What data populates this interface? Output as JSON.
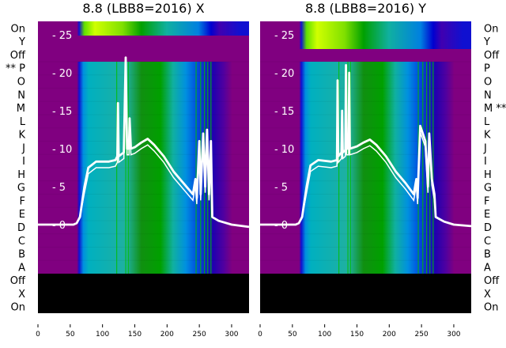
{
  "chart_data": [
    {
      "type": "heatmap",
      "title": "8.8 (LBB8=2016) X",
      "row_labels": [
        "On",
        "Y",
        "Off",
        "** P",
        "O",
        "N",
        "M",
        "L",
        "K",
        "J",
        "I",
        "H",
        "G",
        "F",
        "E",
        "D",
        "C",
        "B",
        "A",
        "Off",
        "X",
        "On"
      ],
      "label_side": "left",
      "xlim": [
        0,
        327
      ],
      "x_ticks": [
        0,
        50,
        100,
        150,
        200,
        250,
        300
      ],
      "overlay_ylim": [
        -6.5,
        26.5
      ],
      "overlay_y_ticks": [
        0,
        5,
        10,
        15,
        20,
        25
      ],
      "spectrum": [
        [
          0,
          0
        ],
        [
          55,
          0
        ],
        [
          60,
          0.2
        ],
        [
          65,
          1
        ],
        [
          72,
          5
        ],
        [
          78,
          7.5
        ],
        [
          90,
          8.3
        ],
        [
          110,
          8.3
        ],
        [
          120,
          8.5
        ],
        [
          123,
          9
        ],
        [
          124,
          16
        ],
        [
          125,
          9
        ],
        [
          133,
          9.5
        ],
        [
          136,
          22
        ],
        [
          138,
          10
        ],
        [
          141,
          10
        ],
        [
          142,
          14
        ],
        [
          144,
          10
        ],
        [
          150,
          10.2
        ],
        [
          160,
          10.8
        ],
        [
          170,
          11.3
        ],
        [
          180,
          10.5
        ],
        [
          195,
          9
        ],
        [
          210,
          7
        ],
        [
          225,
          5.5
        ],
        [
          240,
          4
        ],
        [
          244,
          6
        ],
        [
          246,
          3.5
        ],
        [
          250,
          11
        ],
        [
          252,
          4
        ],
        [
          256,
          12
        ],
        [
          259,
          5
        ],
        [
          262,
          12.5
        ],
        [
          265,
          4
        ],
        [
          268,
          11
        ],
        [
          270,
          1
        ],
        [
          280,
          0.5
        ],
        [
          300,
          0
        ],
        [
          327,
          -0.3
        ]
      ]
    },
    {
      "type": "heatmap",
      "title": "8.8 (LBB8=2016) Y",
      "row_labels": [
        "On",
        "Y",
        "Off",
        "P",
        "O",
        "N",
        "M **",
        "L",
        "K",
        "J",
        "I",
        "H",
        "G",
        "F",
        "E",
        "D",
        "C",
        "B",
        "A",
        "Off",
        "X",
        "On"
      ],
      "label_side": "right",
      "xlim": [
        0,
        327
      ],
      "x_ticks": [
        0,
        50,
        100,
        150,
        200,
        250,
        300
      ],
      "overlay_ylim": [
        -6.5,
        26.5
      ],
      "overlay_y_ticks": [
        0,
        5,
        10,
        15,
        20,
        25
      ],
      "spectrum": [
        [
          0,
          0
        ],
        [
          55,
          0
        ],
        [
          60,
          0.2
        ],
        [
          65,
          1
        ],
        [
          72,
          5
        ],
        [
          78,
          7.8
        ],
        [
          90,
          8.5
        ],
        [
          110,
          8.3
        ],
        [
          119,
          8.5
        ],
        [
          120,
          19
        ],
        [
          121,
          9
        ],
        [
          126,
          9.5
        ],
        [
          127,
          15
        ],
        [
          128,
          9.5
        ],
        [
          132,
          9.8
        ],
        [
          133,
          21
        ],
        [
          134,
          10
        ],
        [
          137,
          10
        ],
        [
          138,
          20
        ],
        [
          139,
          10
        ],
        [
          150,
          10.3
        ],
        [
          160,
          10.8
        ],
        [
          170,
          11.2
        ],
        [
          180,
          10.5
        ],
        [
          195,
          9
        ],
        [
          210,
          7
        ],
        [
          225,
          5.5
        ],
        [
          238,
          4
        ],
        [
          242,
          6
        ],
        [
          244,
          3.5
        ],
        [
          248,
          13
        ],
        [
          252,
          12
        ],
        [
          256,
          11
        ],
        [
          260,
          5
        ],
        [
          262,
          12
        ],
        [
          266,
          6
        ],
        [
          270,
          4
        ],
        [
          272,
          1
        ],
        [
          285,
          0.4
        ],
        [
          300,
          0
        ],
        [
          327,
          -0.2
        ]
      ]
    }
  ]
}
